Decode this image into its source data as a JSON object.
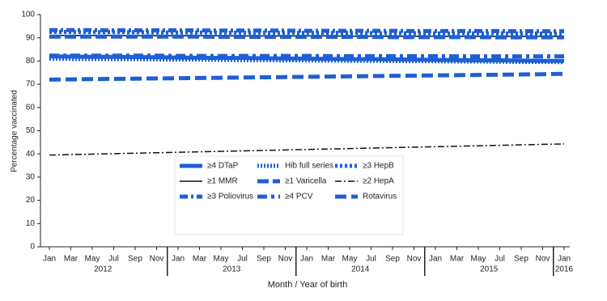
{
  "chart_data": {
    "type": "line",
    "ylabel": "Percentage vaccinated",
    "xlabel": "Month / Year of birth",
    "categories": [
      "Jan",
      "Mar",
      "May",
      "Jul",
      "Sep",
      "Nov",
      "Jan",
      "Mar",
      "May",
      "Jul",
      "Sep",
      "Nov",
      "Jan",
      "Mar",
      "May",
      "Jul",
      "Sep",
      "Nov",
      "Jan",
      "Mar",
      "May",
      "Jul",
      "Sep",
      "Nov",
      "Jan"
    ],
    "year_labels": [
      "2012",
      "2013",
      "2014",
      "2015",
      "2016"
    ],
    "ylim": [
      0,
      100
    ],
    "yticks": [
      0,
      10,
      20,
      30,
      40,
      50,
      60,
      70,
      80,
      90,
      100
    ],
    "series": [
      {
        "name": "≥4 DTaP",
        "color": "#1f5fd6",
        "values": [
          82.0,
          81.9,
          81.8,
          81.8,
          81.7,
          81.6,
          81.5,
          81.4,
          81.3,
          81.3,
          81.2,
          81.1,
          81.0,
          80.9,
          80.8,
          80.8,
          80.7,
          80.6,
          80.5,
          80.4,
          80.3,
          80.3,
          80.2,
          80.1,
          80.0
        ]
      },
      {
        "name": "Hib full series",
        "color": "#1f5fd6",
        "values": [
          81.0,
          80.9,
          80.9,
          80.8,
          80.8,
          80.7,
          80.6,
          80.6,
          80.5,
          80.4,
          80.4,
          80.3,
          80.3,
          80.2,
          80.1,
          80.1,
          80.0,
          79.9,
          79.9,
          79.8,
          79.8,
          79.7,
          79.6,
          79.6,
          79.5
        ]
      },
      {
        "name": "≥3 HepB",
        "color": "#1f5fd6",
        "values": [
          92.5,
          92.5,
          92.4,
          92.4,
          92.4,
          92.3,
          92.3,
          92.3,
          92.2,
          92.2,
          92.2,
          92.1,
          92.1,
          92.1,
          92.1,
          92.0,
          92.0,
          92.0,
          91.9,
          91.9,
          91.9,
          91.9,
          91.8,
          91.8,
          91.8
        ]
      },
      {
        "name": "≥1 MMR",
        "color": "#111111",
        "values": [
          91.0,
          91.0,
          91.0,
          91.0,
          90.9,
          90.9,
          90.9,
          90.9,
          90.9,
          90.8,
          90.8,
          90.8,
          90.8,
          90.8,
          90.7,
          90.7,
          90.7,
          90.7,
          90.7,
          90.6,
          90.6,
          90.6,
          90.6,
          90.6,
          90.6
        ]
      },
      {
        "name": "≥1 Varicella",
        "color": "#1f5fd6",
        "values": [
          90.5,
          90.5,
          90.5,
          90.5,
          90.5,
          90.5,
          90.5,
          90.5,
          90.4,
          90.4,
          90.4,
          90.4,
          90.4,
          90.4,
          90.4,
          90.4,
          90.3,
          90.3,
          90.3,
          90.3,
          90.3,
          90.2,
          90.2,
          90.2,
          90.2
        ]
      },
      {
        "name": "≥2 HepA",
        "color": "#111111",
        "values": [
          39.5,
          39.7,
          39.9,
          40.1,
          40.3,
          40.5,
          40.7,
          40.9,
          41.1,
          41.3,
          41.5,
          41.7,
          41.9,
          42.1,
          42.3,
          42.5,
          42.7,
          42.9,
          43.1,
          43.3,
          43.5,
          43.7,
          43.9,
          44.1,
          44.3
        ]
      },
      {
        "name": "≥3 Poliovirus",
        "color": "#1f5fd6",
        "values": [
          93.3,
          93.3,
          93.3,
          93.2,
          93.2,
          93.2,
          93.2,
          93.2,
          93.1,
          93.1,
          93.1,
          93.1,
          93.0,
          93.0,
          93.0,
          93.0,
          93.0,
          92.9,
          92.9,
          92.9,
          92.9,
          92.9,
          92.8,
          92.8,
          92.8
        ]
      },
      {
        "name": "≥4 PCV",
        "color": "#1f5fd6",
        "values": [
          82.3,
          82.3,
          82.3,
          82.3,
          82.3,
          82.3,
          82.2,
          82.2,
          82.2,
          82.2,
          82.2,
          82.2,
          82.2,
          82.1,
          82.1,
          82.1,
          82.1,
          82.1,
          82.1,
          82.0,
          82.0,
          82.0,
          82.0,
          82.0,
          82.0
        ]
      },
      {
        "name": "Rotavirus",
        "color": "#1f5fd6",
        "values": [
          72.0,
          72.1,
          72.2,
          72.3,
          72.4,
          72.5,
          72.6,
          72.7,
          72.8,
          72.9,
          73.0,
          73.1,
          73.2,
          73.3,
          73.4,
          73.5,
          73.6,
          73.7,
          73.8,
          73.9,
          74.0,
          74.1,
          74.2,
          74.3,
          74.5
        ]
      }
    ]
  }
}
